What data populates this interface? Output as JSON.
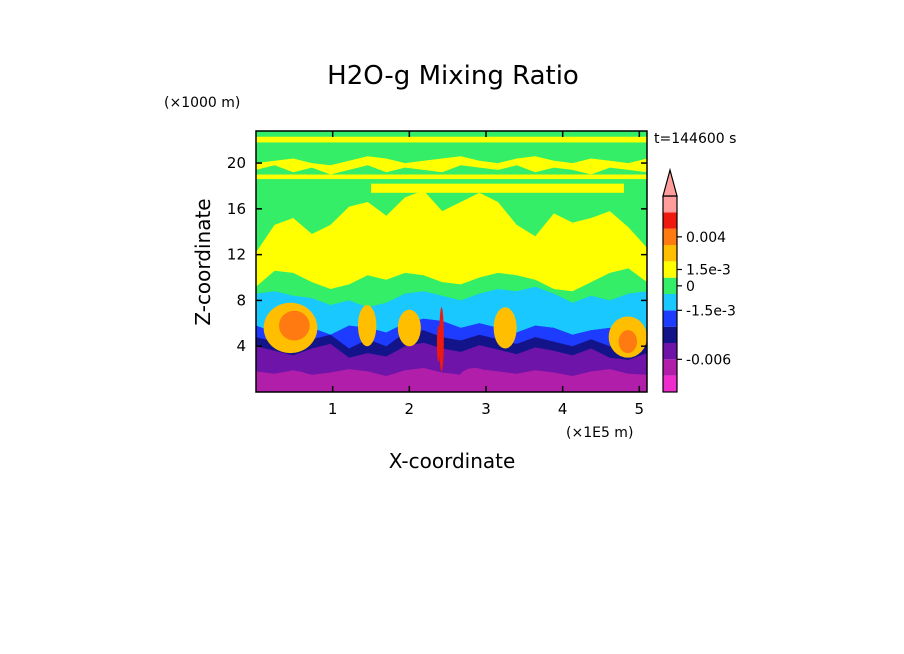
{
  "chart_data": {
    "type": "heatmap",
    "title": "H2O-g Mixing Ratio",
    "xlabel": "X-coordinate",
    "ylabel": "Z-coordinate",
    "x_units": "(×1E5 m)",
    "y_units": "(×1000 m)",
    "time_label": "t=144600 s",
    "xlim": [
      0,
      5.1
    ],
    "ylim": [
      0,
      22.8
    ],
    "x_ticks": [
      1,
      2,
      3,
      4,
      5
    ],
    "y_ticks": [
      4,
      8,
      12,
      16,
      20
    ],
    "grid": false,
    "legend": "colorbar-right",
    "colorbar": {
      "ticks": [
        {
          "label": "0.004",
          "level": 9.5
        },
        {
          "label": "1.5e-3",
          "level": 7.5
        },
        {
          "label": "0",
          "level": 6.5
        },
        {
          "label": "-1.5e-3",
          "level": 5.0
        },
        {
          "label": "-0.006",
          "level": 2.0
        }
      ],
      "colors": [
        "#ee2ecc",
        "#b11eaa",
        "#6e14a8",
        "#14148a",
        "#1e3cff",
        "#18c8ff",
        "#33ee66",
        "#ffff00",
        "#ffbf00",
        "#ff7a10",
        "#ee1a10",
        "#ff9c9c"
      ],
      "extend_top": true
    },
    "bands": [
      {
        "level": 1,
        "z_top": [
          1.8,
          1.6,
          1.9,
          1.5,
          1.7,
          2.0,
          1.8,
          1.4,
          1.9,
          2.1,
          1.7,
          1.5,
          2.0,
          1.8,
          1.6,
          1.9,
          1.7,
          1.4,
          1.8,
          2.0,
          1.6,
          1.5
        ]
      },
      {
        "level": 2,
        "z_top": [
          4.0,
          3.6,
          3.2,
          3.8,
          4.2,
          3.0,
          3.4,
          3.1,
          4.0,
          4.3,
          3.8,
          3.5,
          4.1,
          3.7,
          3.3,
          3.9,
          3.6,
          3.2,
          3.8,
          3.0,
          2.8,
          3.4
        ]
      },
      {
        "level": 3,
        "z_top": [
          4.8,
          4.4,
          4.2,
          4.6,
          5.0,
          3.8,
          4.6,
          4.0,
          5.2,
          5.4,
          4.8,
          4.5,
          5.0,
          4.6,
          4.2,
          4.8,
          4.4,
          4.0,
          4.6,
          4.0,
          3.8,
          4.2
        ]
      },
      {
        "level": 4,
        "z_top": [
          5.8,
          5.2,
          5.4,
          5.6,
          5.0,
          5.8,
          5.6,
          5.2,
          6.0,
          6.4,
          6.2,
          5.6,
          6.0,
          5.6,
          5.2,
          5.8,
          5.6,
          5.0,
          5.4,
          5.6,
          5.2,
          5.0
        ]
      },
      {
        "level": 5,
        "z_top": [
          8.6,
          8.8,
          8.4,
          8.2,
          7.6,
          8.0,
          7.4,
          7.8,
          8.6,
          8.8,
          8.4,
          8.0,
          8.6,
          9.0,
          8.8,
          9.2,
          8.6,
          7.8,
          8.4,
          8.0,
          8.6,
          8.8
        ]
      },
      {
        "level": 6,
        "z_top": [
          9.2,
          10.6,
          10.4,
          9.6,
          9.0,
          9.4,
          10.2,
          9.8,
          10.4,
          10.2,
          9.6,
          9.4,
          10.0,
          10.4,
          10.2,
          9.8,
          9.0,
          8.8,
          9.6,
          10.4,
          10.8,
          9.6
        ]
      },
      {
        "level": 7,
        "z_top": [
          12.2,
          14.6,
          15.2,
          13.8,
          14.6,
          16.2,
          16.6,
          15.4,
          17.0,
          17.6,
          15.8,
          16.6,
          17.4,
          16.6,
          14.6,
          13.6,
          15.6,
          14.8,
          15.2,
          15.8,
          14.4,
          12.6
        ]
      },
      {
        "level": 6,
        "z_top": [
          19.4,
          19.8,
          19.2,
          19.6,
          19.0,
          19.4,
          19.8,
          19.2,
          19.6,
          19.4,
          19.2,
          19.8,
          19.6,
          19.4,
          19.8,
          19.2,
          19.6,
          19.4,
          19.0,
          19.6,
          19.4,
          19.2
        ]
      },
      {
        "level": 7,
        "z_top": [
          20.0,
          20.2,
          20.4,
          20.0,
          19.8,
          20.2,
          20.6,
          20.4,
          20.0,
          20.2,
          20.4,
          20.6,
          20.2,
          20.0,
          20.4,
          20.6,
          20.2,
          20.0,
          20.4,
          20.2,
          20.0,
          20.4
        ]
      },
      {
        "level": 6,
        "z_top": [
          22.8,
          22.8,
          22.8,
          22.8,
          22.8,
          22.8,
          22.8,
          22.8,
          22.8,
          22.8,
          22.8,
          22.8,
          22.8,
          22.8,
          22.8,
          22.8,
          22.8,
          22.8,
          22.8,
          22.8,
          22.8,
          22.8
        ]
      }
    ],
    "streaks": [
      {
        "level": 7,
        "x": [
          0.0,
          5.1
        ],
        "z": [
          21.8,
          22.3
        ]
      },
      {
        "level": 7,
        "x": [
          0.0,
          5.1
        ],
        "z": [
          18.6,
          19.0
        ]
      },
      {
        "level": 7,
        "x": [
          1.5,
          4.8
        ],
        "z": [
          17.4,
          18.2
        ]
      }
    ],
    "blobs": [
      {
        "level": 8,
        "x": 0.45,
        "z": 5.6,
        "rx": 0.35,
        "rz": 2.2
      },
      {
        "level": 9,
        "x": 0.5,
        "z": 5.8,
        "rx": 0.2,
        "rz": 1.3
      },
      {
        "level": 8,
        "x": 1.45,
        "z": 5.8,
        "rx": 0.12,
        "rz": 1.8
      },
      {
        "level": 8,
        "x": 2.0,
        "z": 5.6,
        "rx": 0.15,
        "rz": 1.6
      },
      {
        "level": 8,
        "x": 3.25,
        "z": 5.6,
        "rx": 0.15,
        "rz": 1.8
      },
      {
        "level": 8,
        "x": 4.85,
        "z": 4.8,
        "rx": 0.25,
        "rz": 1.8
      },
      {
        "level": 9,
        "x": 4.85,
        "z": 4.4,
        "rx": 0.12,
        "rz": 1.0
      },
      {
        "level": 10,
        "x": 2.42,
        "z": 4.6,
        "rx": 0.03,
        "rz": 2.8
      },
      {
        "level": 10,
        "x": 2.38,
        "z": 4.2,
        "rx": 0.02,
        "rz": 1.6
      },
      {
        "level": 1,
        "x": 2.85,
        "z": 1.2,
        "rx": 0.2,
        "rz": 0.9
      },
      {
        "level": 1,
        "x": 0.55,
        "z": 1.1,
        "rx": 0.15,
        "rz": 0.7
      }
    ]
  }
}
